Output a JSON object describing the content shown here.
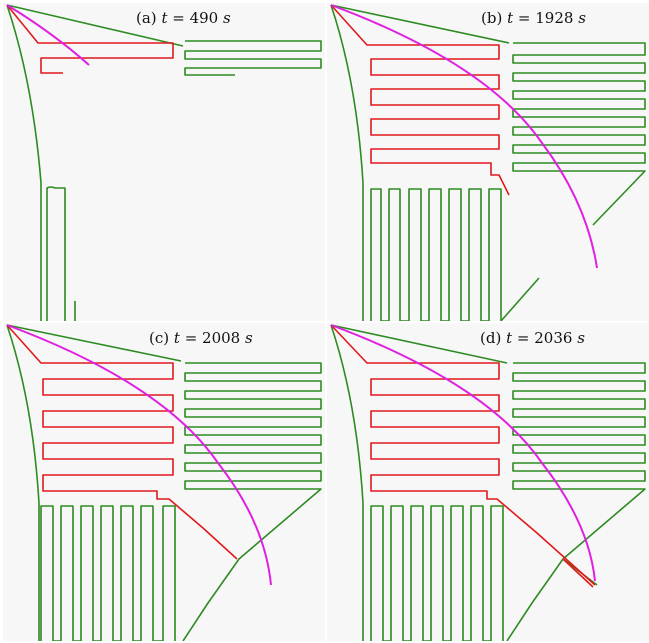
{
  "panels": [
    {
      "id": "a",
      "label": "(a) t = 490 s",
      "prefix": "(a)",
      "var": "t",
      "eq": "= 490",
      "unit": "s"
    },
    {
      "id": "b",
      "label": "(b) t = 1928 s",
      "prefix": "(b)",
      "var": "t",
      "eq": "= 1928",
      "unit": "s"
    },
    {
      "id": "c",
      "label": "(c) t = 2008 s",
      "prefix": "(c)",
      "var": "t",
      "eq": "= 2008",
      "unit": "s"
    },
    {
      "id": "d",
      "label": "(d) t = 2036 s",
      "prefix": "(d)",
      "var": "t",
      "eq": "= 2036",
      "unit": "s"
    }
  ],
  "colors": {
    "background": "#f7f7f7",
    "green": "#2e8b22",
    "red": "#e0191c",
    "magenta": "#e020e0"
  }
}
